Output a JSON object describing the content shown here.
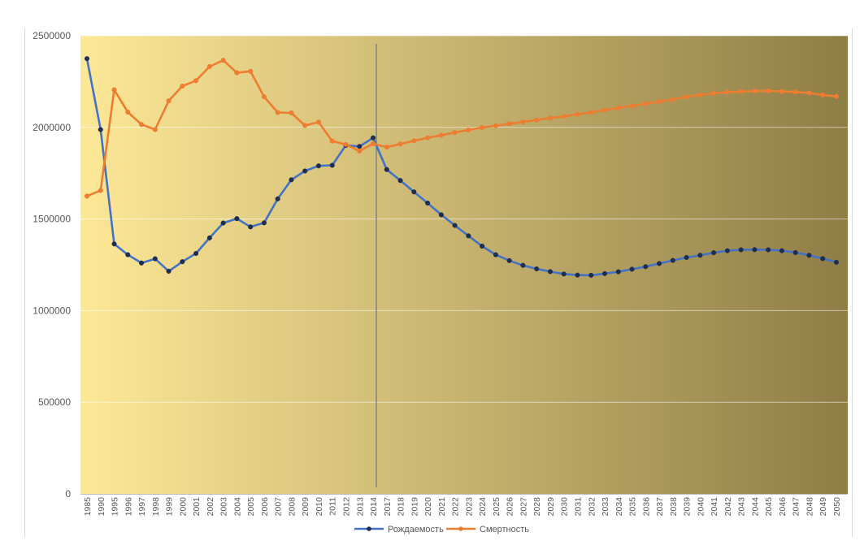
{
  "chart_data": {
    "type": "line",
    "title": "",
    "xlabel": "",
    "ylabel": "",
    "ylim": [
      0,
      2500000
    ],
    "y_ticks": [
      0,
      500000,
      1000000,
      1500000,
      2000000,
      2500000
    ],
    "y_tick_labels": [
      "0",
      "500000",
      "1000000",
      "1500000",
      "2000000",
      "2500000"
    ],
    "grid": true,
    "legend_position": "bottom",
    "background": {
      "gradient": [
        "#fde897",
        "#8f7d46"
      ]
    },
    "marker_line_year": "2014",
    "categories": [
      "1985",
      "1990",
      "1995",
      "1996",
      "1997",
      "1998",
      "1999",
      "2000",
      "2001",
      "2002",
      "2003",
      "2004",
      "2005",
      "2006",
      "2007",
      "2008",
      "2009",
      "2010",
      "2011",
      "2012",
      "2013",
      "2014",
      "2017",
      "2018",
      "2019",
      "2020",
      "2021",
      "2022",
      "2023",
      "2024",
      "2025",
      "2026",
      "2027",
      "2028",
      "2029",
      "2030",
      "2031",
      "2032",
      "2033",
      "2034",
      "2035",
      "2036",
      "2037",
      "2038",
      "2039",
      "2040",
      "2041",
      "2042",
      "2043",
      "2044",
      "2045",
      "2046",
      "2047",
      "2048",
      "2049",
      "2050"
    ],
    "series": [
      {
        "name": "Рождаемость",
        "color": "#4472c4",
        "marker_color": "#1f2d4f",
        "values": [
          2375000,
          1988000,
          1364000,
          1305000,
          1260000,
          1283000,
          1215000,
          1267000,
          1312000,
          1397000,
          1478000,
          1502000,
          1457000,
          1479000,
          1610000,
          1714000,
          1762000,
          1790000,
          1793000,
          1902000,
          1896000,
          1943000,
          1770000,
          1710000,
          1648000,
          1587000,
          1523000,
          1465000,
          1408000,
          1352000,
          1305000,
          1273000,
          1247000,
          1228000,
          1213000,
          1200000,
          1194000,
          1193000,
          1202000,
          1212000,
          1226000,
          1240000,
          1257000,
          1274000,
          1290000,
          1302000,
          1316000,
          1327000,
          1332000,
          1333000,
          1332000,
          1327000,
          1317000,
          1302000,
          1284000,
          1264000
        ]
      },
      {
        "name": "Смертность",
        "color": "#ed7d31",
        "marker_color": "#ed7d31",
        "values": [
          1625000,
          1656000,
          2205000,
          2083000,
          2016000,
          1988000,
          2145000,
          2225000,
          2255000,
          2332000,
          2366000,
          2298000,
          2306000,
          2167000,
          2081000,
          2079000,
          2010000,
          2029000,
          1925000,
          1907000,
          1871000,
          1911000,
          1892000,
          1909000,
          1927000,
          1943000,
          1957000,
          1972000,
          1986000,
          1999000,
          2009000,
          2020000,
          2030000,
          2040000,
          2051000,
          2060000,
          2071000,
          2082000,
          2094000,
          2106000,
          2117000,
          2129000,
          2141000,
          2152000,
          2167000,
          2177000,
          2186000,
          2192000,
          2195000,
          2198000,
          2199000,
          2196000,
          2193000,
          2188000,
          2177000,
          2169000
        ]
      }
    ]
  }
}
